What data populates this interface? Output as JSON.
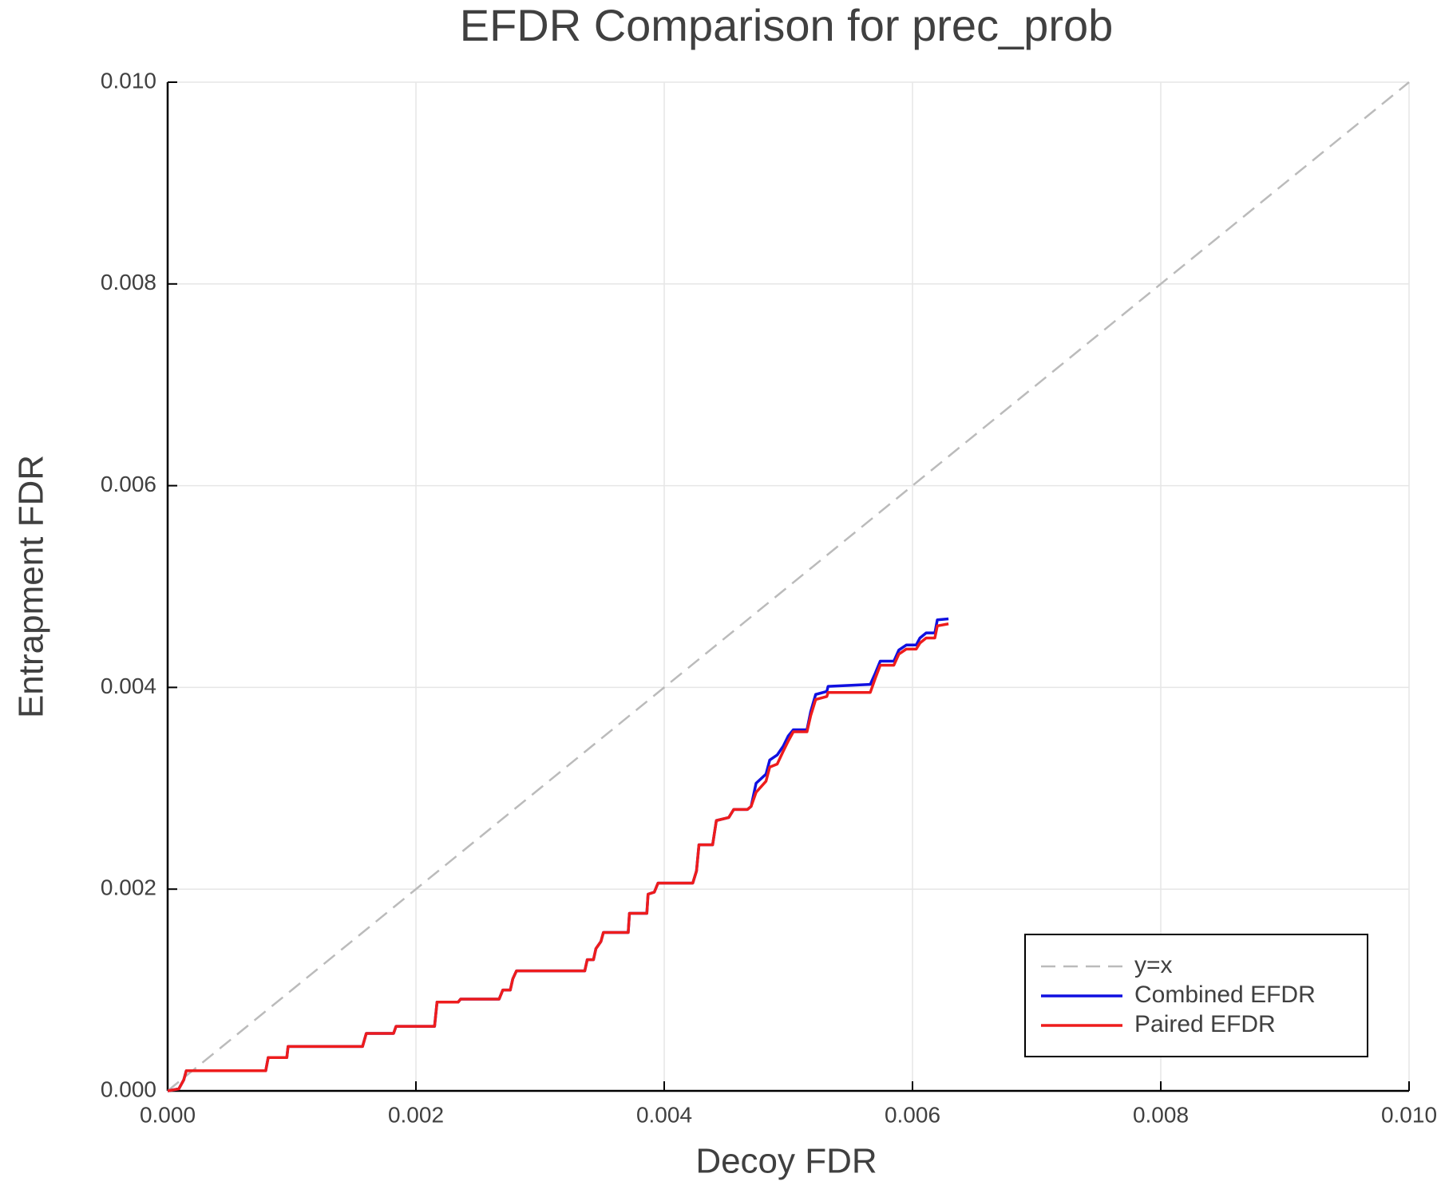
{
  "chart_data": {
    "type": "line",
    "title": "EFDR Comparison for prec_prob",
    "xlabel": "Decoy FDR",
    "ylabel": "Entrapment FDR",
    "xlim": [
      0,
      0.01
    ],
    "ylim": [
      0,
      0.01
    ],
    "xticks": [
      {
        "value": 0,
        "label": "0.000"
      },
      {
        "value": 0.002,
        "label": "0.002"
      },
      {
        "value": 0.004,
        "label": "0.004"
      },
      {
        "value": 0.006,
        "label": "0.006"
      },
      {
        "value": 0.008,
        "label": "0.008"
      },
      {
        "value": 0.01,
        "label": "0.010"
      }
    ],
    "yticks": [
      {
        "value": 0,
        "label": "0.000"
      },
      {
        "value": 0.002,
        "label": "0.002"
      },
      {
        "value": 0.004,
        "label": "0.004"
      },
      {
        "value": 0.006,
        "label": "0.006"
      },
      {
        "value": 0.008,
        "label": "0.008"
      },
      {
        "value": 0.01,
        "label": "0.010"
      }
    ],
    "grid": true,
    "legend": "bottom-right",
    "x": [
      0,
      9e-05,
      0.00013,
      0.00015,
      0.00079,
      0.00081,
      0.00096,
      0.00097,
      0.00157,
      0.0016,
      0.00182,
      0.00184,
      0.00215,
      0.00217,
      0.00234,
      0.00236,
      0.00267,
      0.0027,
      0.00276,
      0.00278,
      0.00281,
      0.00336,
      0.00338,
      0.00343,
      0.00345,
      0.00349,
      0.00351,
      0.00371,
      0.00372,
      0.00386,
      0.00387,
      0.00392,
      0.00395,
      0.00423,
      0.00426,
      0.00428,
      0.00439,
      0.00442,
      0.00452,
      0.00456,
      0.00467,
      0.0047,
      0.00474,
      0.00482,
      0.00485,
      0.00491,
      0.00496,
      0.005,
      0.00504,
      0.00515,
      0.00518,
      0.00522,
      0.00531,
      0.00532,
      0.00566,
      0.0057,
      0.00574,
      0.00585,
      0.00589,
      0.00595,
      0.00603,
      0.00606,
      0.00611,
      0.00618,
      0.0062,
      0.00629
    ],
    "series": [
      {
        "name": "y=x",
        "color": "#bbbbbb",
        "dash": true,
        "x": [
          0,
          0.01
        ],
        "values": [
          0,
          0.01
        ]
      },
      {
        "name": "Combined EFDR",
        "color": "#1010e0",
        "values": [
          0,
          2e-05,
          0.00011,
          0.0002,
          0.0002,
          0.00033,
          0.00033,
          0.00044,
          0.00044,
          0.00057,
          0.00057,
          0.00064,
          0.00064,
          0.00088,
          0.00088,
          0.00091,
          0.00091,
          0.001,
          0.001,
          0.00111,
          0.00119,
          0.00119,
          0.0013,
          0.0013,
          0.00141,
          0.00148,
          0.00157,
          0.00157,
          0.00176,
          0.00176,
          0.00195,
          0.00197,
          0.00206,
          0.00206,
          0.00218,
          0.00244,
          0.00244,
          0.00268,
          0.00271,
          0.00279,
          0.00279,
          0.00282,
          0.00305,
          0.00314,
          0.00328,
          0.00333,
          0.00342,
          0.00352,
          0.00358,
          0.00358,
          0.00376,
          0.00393,
          0.00396,
          0.00401,
          0.00403,
          0.00414,
          0.00426,
          0.00426,
          0.00437,
          0.00442,
          0.00442,
          0.00449,
          0.00454,
          0.00454,
          0.00467,
          0.00468
        ]
      },
      {
        "name": "Paired EFDR",
        "color": "#ee1c1c",
        "values": [
          0,
          2e-05,
          0.00011,
          0.0002,
          0.0002,
          0.00033,
          0.00033,
          0.00044,
          0.00044,
          0.00057,
          0.00057,
          0.00064,
          0.00064,
          0.00088,
          0.00088,
          0.00091,
          0.00091,
          0.001,
          0.001,
          0.00111,
          0.00119,
          0.00119,
          0.0013,
          0.0013,
          0.00141,
          0.00148,
          0.00157,
          0.00157,
          0.00176,
          0.00176,
          0.00195,
          0.00197,
          0.00206,
          0.00206,
          0.00218,
          0.00244,
          0.00244,
          0.00268,
          0.00271,
          0.00279,
          0.00279,
          0.00282,
          0.00296,
          0.00307,
          0.00321,
          0.00324,
          0.00337,
          0.00347,
          0.00356,
          0.00356,
          0.00372,
          0.00388,
          0.00391,
          0.00395,
          0.00395,
          0.00409,
          0.00422,
          0.00422,
          0.00433,
          0.00438,
          0.00438,
          0.00444,
          0.00449,
          0.00449,
          0.00461,
          0.00463
        ]
      }
    ]
  }
}
